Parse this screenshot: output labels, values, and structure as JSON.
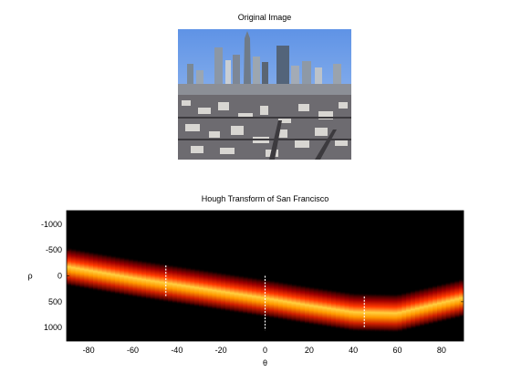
{
  "photo": {
    "title": "Original Image",
    "colors": {
      "sky_top": "#5f93e6",
      "sky_bottom": "#a9c7f0",
      "city": "#6d6b70"
    }
  },
  "chart_data": {
    "type": "heatmap",
    "title": "Hough Transform of San Francisco",
    "xlabel": "θ",
    "ylabel": "ρ",
    "xlim": [
      -90,
      90
    ],
    "ylim": [
      -1260,
      1260
    ],
    "y_reversed": true,
    "x_ticks": [
      -80,
      -60,
      -40,
      -20,
      0,
      20,
      40,
      60,
      80
    ],
    "y_ticks": [
      -1000,
      -500,
      0,
      500,
      1000
    ],
    "colormap": "hot",
    "background": "#000000",
    "band": {
      "center_rho": [
        {
          "theta": -90,
          "rho": -180
        },
        {
          "theta": -60,
          "rho": 40
        },
        {
          "theta": -40,
          "rho": 170
        },
        {
          "theta": -20,
          "rho": 300
        },
        {
          "theta": 0,
          "rho": 430
        },
        {
          "theta": 20,
          "rho": 570
        },
        {
          "theta": 40,
          "rho": 700
        },
        {
          "theta": 60,
          "rho": 720
        },
        {
          "theta": 90,
          "rho": 420
        }
      ],
      "half_width_rho": 380
    },
    "peak_lines": [
      {
        "theta": -45,
        "rho_from": -200,
        "rho_to": 400
      },
      {
        "theta": 0,
        "rho_from": 0,
        "rho_to": 1050
      },
      {
        "theta": 45,
        "rho_from": 400,
        "rho_to": 1000
      }
    ]
  }
}
